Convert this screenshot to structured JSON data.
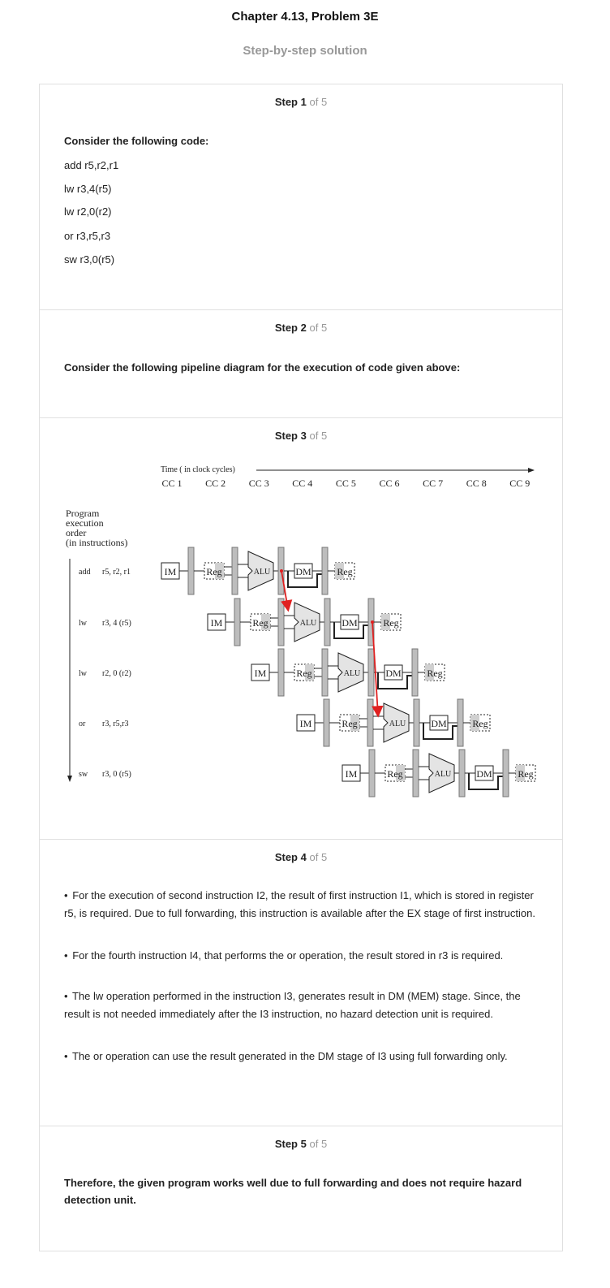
{
  "header": {
    "title": "Chapter 4.13, Problem 3E",
    "subtitle": "Step-by-step solution"
  },
  "steps": [
    {
      "step_word": "Step",
      "number": "1",
      "of_text": "of 5"
    },
    {
      "step_word": "Step",
      "number": "2",
      "of_text": "of 5"
    },
    {
      "step_word": "Step",
      "number": "3",
      "of_text": "of 5"
    },
    {
      "step_word": "Step",
      "number": "4",
      "of_text": "of 5"
    },
    {
      "step_word": "Step",
      "number": "5",
      "of_text": "of 5"
    }
  ],
  "step1": {
    "intro": "Consider the following code:",
    "code": [
      "add r5,r2,r1",
      "lw r3,4(r5)",
      "lw r2,0(r2)",
      "or r3,r5,r3",
      "sw r3,0(r5)"
    ]
  },
  "step2": {
    "text": "Consider the following pipeline diagram for the execution of code given above:"
  },
  "diagram": {
    "time_label": "Time ( in clock cycles)",
    "cycles": [
      "CC 1",
      "CC 2",
      "CC 3",
      "CC 4",
      "CC 5",
      "CC 6",
      "CC 7",
      "CC 8",
      "CC 9"
    ],
    "order_label": [
      "Program",
      "execution",
      "order",
      "(in instructions)"
    ],
    "instructions": [
      {
        "op": "add",
        "args": "r5, r2, r1"
      },
      {
        "op": "lw",
        "args": "r3, 4 (r5)"
      },
      {
        "op": "lw",
        "args": "r2, 0 (r2)"
      },
      {
        "op": "or",
        "args": "r3, r5,r3"
      },
      {
        "op": "sw",
        "args": "r3, 0 (r5)"
      }
    ],
    "stages": {
      "im": "IM",
      "reg": "Reg",
      "alu": "ALU",
      "dm": "DM"
    },
    "arrow_color": "#e02020"
  },
  "step4": {
    "bullets": [
      "For the execution of second instruction I2, the result of first instruction I1, which is stored in register r5, is required. Due to full forwarding, this instruction is available after the EX stage of first instruction.",
      "For the fourth instruction I4, that performs the or operation, the result stored in r3 is required.",
      "The lw operation performed in the instruction I3, generates result in DM (MEM) stage. Since, the result is not needed immediately after the I3 instruction, no hazard detection unit is required.",
      "The or operation can use the result generated in the DM stage of I3 using full forwarding only."
    ],
    "bullet_char": "•"
  },
  "step5": {
    "text": "Therefore, the given program works well due to full forwarding and does not require hazard detection unit."
  }
}
